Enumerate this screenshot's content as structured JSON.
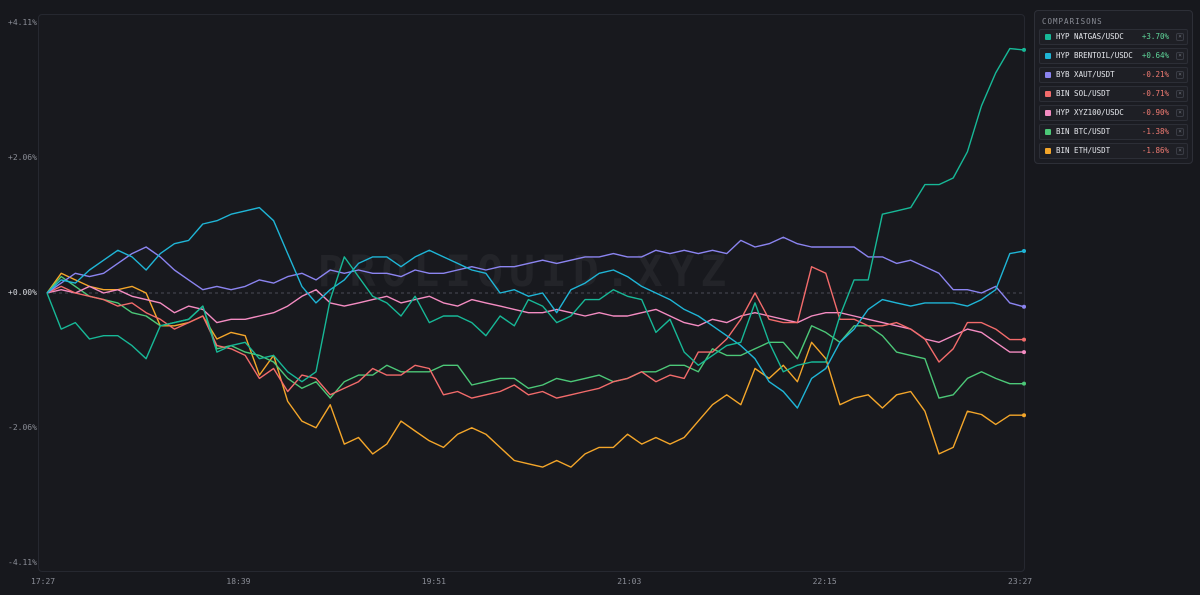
{
  "chart_data": {
    "type": "line",
    "watermark": "PROLIQUID.XYZ",
    "legend_title": "COMPARISONS",
    "legend_placement": "top-right",
    "ylim": [
      -4.11,
      4.11
    ],
    "y_ticks": [
      "+4.11%",
      "+2.06%",
      "+0.00%",
      "-2.06%",
      "-4.11%"
    ],
    "y_tick_values": [
      4.11,
      2.06,
      0,
      -2.06,
      -4.11
    ],
    "x_ticks": [
      "17:27",
      "18:39",
      "19:51",
      "21:03",
      "22:15",
      "23:27"
    ],
    "x_tick_values": [
      0,
      72,
      144,
      216,
      288,
      360
    ],
    "x_unit": "minutes after 17:27",
    "series": [
      {
        "name": "HYP NATGAS/USDC",
        "change": "+3.70%",
        "color": "#17b897",
        "value_color": "#5fd79a",
        "values": [
          0,
          -0.55,
          -0.45,
          -0.7,
          -0.65,
          -0.65,
          -0.8,
          -1.0,
          -0.5,
          -0.45,
          -0.4,
          -0.2,
          -0.9,
          -0.8,
          -0.75,
          -1.0,
          -0.95,
          -1.2,
          -1.35,
          -1.2,
          -0.1,
          0.55,
          0.25,
          -0.05,
          -0.15,
          -0.35,
          -0.05,
          -0.45,
          -0.35,
          -0.35,
          -0.45,
          -0.65,
          -0.35,
          -0.5,
          -0.1,
          -0.2,
          -0.45,
          -0.35,
          -0.1,
          -0.1,
          0.05,
          -0.05,
          -0.1,
          -0.6,
          -0.4,
          -0.9,
          -1.1,
          -0.95,
          -0.8,
          -0.75,
          -0.15,
          -0.75,
          -1.2,
          -1.1,
          -1.05,
          -1.05,
          -0.35,
          0.2,
          0.2,
          1.2,
          1.25,
          1.3,
          1.65,
          1.65,
          1.75,
          2.15,
          2.85,
          3.35,
          3.72,
          3.7
        ]
      },
      {
        "name": "HYP BRENTOIL/USDC",
        "change": "+0.64%",
        "color": "#1fb5d6",
        "value_color": "#5fd79a",
        "values": [
          0,
          0.2,
          0.15,
          0.35,
          0.5,
          0.65,
          0.55,
          0.35,
          0.6,
          0.75,
          0.8,
          1.05,
          1.1,
          1.2,
          1.25,
          1.3,
          1.1,
          0.6,
          0.1,
          -0.15,
          0.05,
          0.2,
          0.45,
          0.55,
          0.55,
          0.4,
          0.55,
          0.65,
          0.55,
          0.45,
          0.35,
          0.3,
          0.0,
          0.05,
          -0.05,
          0.0,
          -0.3,
          0.05,
          0.15,
          0.3,
          0.35,
          0.25,
          0.1,
          0.0,
          -0.1,
          -0.25,
          -0.35,
          -0.5,
          -0.65,
          -0.8,
          -1.0,
          -1.35,
          -1.5,
          -1.75,
          -1.3,
          -1.15,
          -0.75,
          -0.55,
          -0.25,
          -0.1,
          -0.15,
          -0.2,
          -0.15,
          -0.15,
          -0.15,
          -0.2,
          -0.1,
          0.05,
          0.6,
          0.64
        ]
      },
      {
        "name": "BYB XAUT/USDT",
        "change": "-0.21%",
        "color": "#8b84f0",
        "value_color": "#f07b72",
        "values": [
          0,
          0.15,
          0.3,
          0.25,
          0.3,
          0.45,
          0.6,
          0.7,
          0.55,
          0.35,
          0.2,
          0.05,
          0.1,
          0.05,
          0.1,
          0.2,
          0.15,
          0.25,
          0.3,
          0.2,
          0.35,
          0.3,
          0.35,
          0.3,
          0.3,
          0.25,
          0.35,
          0.3,
          0.3,
          0.35,
          0.4,
          0.35,
          0.4,
          0.4,
          0.45,
          0.5,
          0.45,
          0.5,
          0.55,
          0.55,
          0.6,
          0.55,
          0.55,
          0.65,
          0.6,
          0.65,
          0.6,
          0.65,
          0.6,
          0.8,
          0.7,
          0.75,
          0.85,
          0.75,
          0.7,
          0.7,
          0.7,
          0.7,
          0.55,
          0.55,
          0.45,
          0.5,
          0.4,
          0.3,
          0.05,
          0.05,
          0.0,
          0.1,
          -0.15,
          -0.21
        ]
      },
      {
        "name": "BIN SOL/USDT",
        "change": "-0.71%",
        "color": "#f26b6b",
        "value_color": "#f07b72",
        "values": [
          0,
          0.1,
          0.0,
          -0.05,
          -0.1,
          -0.2,
          -0.15,
          -0.3,
          -0.4,
          -0.55,
          -0.45,
          -0.35,
          -0.8,
          -0.85,
          -0.95,
          -1.3,
          -1.15,
          -1.5,
          -1.25,
          -1.3,
          -1.55,
          -1.45,
          -1.35,
          -1.15,
          -1.25,
          -1.25,
          -1.1,
          -1.15,
          -1.55,
          -1.5,
          -1.6,
          -1.55,
          -1.5,
          -1.4,
          -1.55,
          -1.5,
          -1.6,
          -1.55,
          -1.5,
          -1.45,
          -1.35,
          -1.3,
          -1.2,
          -1.35,
          -1.25,
          -1.3,
          -0.9,
          -0.9,
          -0.7,
          -0.4,
          0.0,
          -0.4,
          -0.45,
          -0.45,
          0.4,
          0.3,
          -0.4,
          -0.4,
          -0.5,
          -0.5,
          -0.45,
          -0.55,
          -0.7,
          -1.05,
          -0.85,
          -0.45,
          -0.45,
          -0.55,
          -0.71,
          -0.71
        ]
      },
      {
        "name": "HYP XYZ100/USDC",
        "change": "-0.90%",
        "color": "#f48cc2",
        "value_color": "#f07b72",
        "values": [
          0,
          0.05,
          0.0,
          0.1,
          0.0,
          0.05,
          -0.05,
          -0.1,
          -0.15,
          -0.3,
          -0.2,
          -0.25,
          -0.45,
          -0.4,
          -0.4,
          -0.35,
          -0.3,
          -0.2,
          -0.05,
          0.05,
          -0.15,
          -0.2,
          -0.15,
          -0.1,
          -0.05,
          -0.15,
          -0.1,
          -0.05,
          -0.15,
          -0.2,
          -0.1,
          -0.15,
          -0.2,
          -0.25,
          -0.3,
          -0.3,
          -0.25,
          -0.3,
          -0.35,
          -0.3,
          -0.35,
          -0.35,
          -0.3,
          -0.25,
          -0.35,
          -0.45,
          -0.5,
          -0.4,
          -0.45,
          -0.35,
          -0.3,
          -0.35,
          -0.4,
          -0.45,
          -0.35,
          -0.3,
          -0.3,
          -0.35,
          -0.4,
          -0.45,
          -0.5,
          -0.55,
          -0.7,
          -0.75,
          -0.65,
          -0.55,
          -0.6,
          -0.75,
          -0.9,
          -0.9
        ]
      },
      {
        "name": "BIN BTC/USDT",
        "change": "-1.38%",
        "color": "#4cc878",
        "value_color": "#f07b72",
        "values": [
          0,
          0.25,
          0.1,
          -0.05,
          -0.1,
          -0.15,
          -0.3,
          -0.35,
          -0.5,
          -0.45,
          -0.4,
          -0.2,
          -0.85,
          -0.8,
          -0.9,
          -0.95,
          -1.05,
          -1.3,
          -1.45,
          -1.35,
          -1.6,
          -1.35,
          -1.25,
          -1.25,
          -1.1,
          -1.2,
          -1.2,
          -1.2,
          -1.1,
          -1.1,
          -1.4,
          -1.35,
          -1.3,
          -1.3,
          -1.45,
          -1.4,
          -1.3,
          -1.35,
          -1.3,
          -1.25,
          -1.35,
          -1.3,
          -1.2,
          -1.2,
          -1.1,
          -1.1,
          -1.2,
          -0.85,
          -0.95,
          -0.95,
          -0.85,
          -0.75,
          -0.75,
          -1.0,
          -0.5,
          -0.6,
          -0.75,
          -0.5,
          -0.5,
          -0.65,
          -0.9,
          -0.95,
          -1.0,
          -1.6,
          -1.55,
          -1.3,
          -1.2,
          -1.3,
          -1.38,
          -1.38
        ]
      },
      {
        "name": "BIN ETH/USDT",
        "change": "-1.86%",
        "color": "#f4a62a",
        "value_color": "#f07b72",
        "values": [
          0,
          0.3,
          0.2,
          0.1,
          0.05,
          0.05,
          0.1,
          0.0,
          -0.5,
          -0.5,
          -0.45,
          -0.35,
          -0.7,
          -0.6,
          -0.65,
          -1.25,
          -0.95,
          -1.65,
          -1.95,
          -2.05,
          -1.7,
          -2.3,
          -2.2,
          -2.45,
          -2.3,
          -1.95,
          -2.1,
          -2.25,
          -2.35,
          -2.15,
          -2.05,
          -2.15,
          -2.35,
          -2.55,
          -2.6,
          -2.65,
          -2.55,
          -2.65,
          -2.45,
          -2.35,
          -2.35,
          -2.15,
          -2.3,
          -2.2,
          -2.3,
          -2.2,
          -1.95,
          -1.7,
          -1.55,
          -1.7,
          -1.15,
          -1.3,
          -1.1,
          -1.35,
          -0.75,
          -1.0,
          -1.7,
          -1.6,
          -1.55,
          -1.75,
          -1.55,
          -1.5,
          -1.8,
          -2.45,
          -2.35,
          -1.8,
          -1.85,
          -2.0,
          -1.86,
          -1.86
        ]
      }
    ]
  }
}
